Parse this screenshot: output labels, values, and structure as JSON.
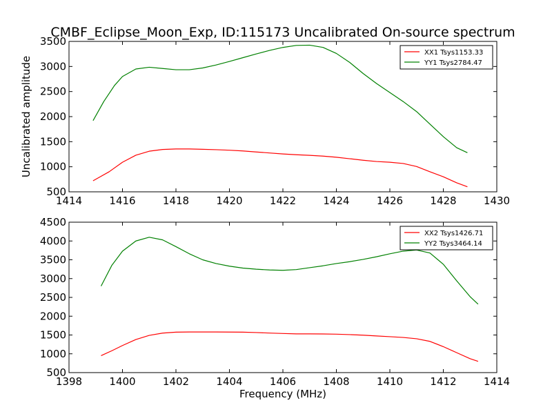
{
  "title": "CMBF_Eclipse_Moon_Exp, ID:115173 Uncalibrated On-source spectrum",
  "colors": {
    "xx": "#ff0000",
    "yy": "#008000"
  },
  "chart_data": [
    {
      "type": "line",
      "xlabel": "",
      "ylabel": "Uncalibrated amplitude",
      "xlim": [
        1414,
        1430
      ],
      "ylim": [
        500,
        3500
      ],
      "xticks": [
        1414,
        1416,
        1418,
        1420,
        1422,
        1424,
        1426,
        1428,
        1430
      ],
      "yticks": [
        500,
        1000,
        1500,
        2000,
        2500,
        3000,
        3500
      ],
      "grid": false,
      "legend_position": "top-right",
      "series": [
        {
          "name": "XX1 Tsys1153.33",
          "color": "#ff0000",
          "x": [
            1414.9,
            1415.5,
            1416.0,
            1416.5,
            1417.0,
            1417.5,
            1418.0,
            1418.5,
            1419.0,
            1419.5,
            1420.0,
            1420.5,
            1421.0,
            1421.5,
            1422.0,
            1422.5,
            1423.0,
            1423.5,
            1424.0,
            1424.5,
            1425.0,
            1425.5,
            1426.0,
            1426.5,
            1427.0,
            1427.5,
            1428.0,
            1428.5,
            1428.9
          ],
          "y": [
            720,
            900,
            1090,
            1230,
            1310,
            1345,
            1355,
            1355,
            1348,
            1340,
            1330,
            1315,
            1295,
            1275,
            1255,
            1240,
            1228,
            1212,
            1190,
            1160,
            1130,
            1105,
            1090,
            1065,
            1005,
            900,
            800,
            680,
            600
          ]
        },
        {
          "name": "YY1 Tsys2784.47",
          "color": "#008000",
          "x": [
            1414.9,
            1415.3,
            1415.7,
            1416.0,
            1416.5,
            1417.0,
            1417.5,
            1418.0,
            1418.5,
            1419.0,
            1419.5,
            1420.0,
            1420.5,
            1421.0,
            1421.5,
            1422.0,
            1422.5,
            1423.0,
            1423.5,
            1424.0,
            1424.5,
            1425.0,
            1425.5,
            1426.0,
            1426.5,
            1427.0,
            1427.5,
            1428.0,
            1428.5,
            1428.9
          ],
          "y": [
            1920,
            2300,
            2620,
            2800,
            2950,
            2985,
            2960,
            2935,
            2935,
            2970,
            3030,
            3100,
            3175,
            3250,
            3320,
            3380,
            3420,
            3425,
            3380,
            3260,
            3080,
            2860,
            2660,
            2480,
            2300,
            2100,
            1850,
            1600,
            1380,
            1280
          ]
        }
      ]
    },
    {
      "type": "line",
      "xlabel": "Frequency (MHz)",
      "ylabel": "",
      "xlim": [
        1398,
        1414
      ],
      "ylim": [
        500,
        4500
      ],
      "xticks": [
        1398,
        1400,
        1402,
        1404,
        1406,
        1408,
        1410,
        1412,
        1414
      ],
      "yticks": [
        500,
        1000,
        1500,
        2000,
        2500,
        3000,
        3500,
        4000,
        4500
      ],
      "grid": false,
      "legend_position": "top-right",
      "series": [
        {
          "name": "XX2 Tsys1426.71",
          "color": "#ff0000",
          "x": [
            1399.2,
            1399.6,
            1400.0,
            1400.5,
            1401.0,
            1401.5,
            1402.0,
            1402.5,
            1403.0,
            1403.5,
            1404.0,
            1404.5,
            1405.0,
            1405.5,
            1406.0,
            1406.5,
            1407.0,
            1407.5,
            1408.0,
            1408.5,
            1409.0,
            1409.5,
            1410.0,
            1410.5,
            1411.0,
            1411.5,
            1412.0,
            1412.5,
            1413.0,
            1413.3
          ],
          "y": [
            950,
            1080,
            1220,
            1380,
            1490,
            1550,
            1575,
            1580,
            1580,
            1580,
            1578,
            1575,
            1565,
            1552,
            1540,
            1530,
            1530,
            1528,
            1522,
            1510,
            1495,
            1475,
            1455,
            1435,
            1400,
            1330,
            1190,
            1030,
            870,
            800
          ]
        },
        {
          "name": "YY2 Tsys3464.14",
          "color": "#008000",
          "x": [
            1399.2,
            1399.6,
            1400.0,
            1400.5,
            1401.0,
            1401.5,
            1402.0,
            1402.5,
            1403.0,
            1403.5,
            1404.0,
            1404.5,
            1405.0,
            1405.5,
            1406.0,
            1406.5,
            1407.0,
            1407.5,
            1408.0,
            1408.5,
            1409.0,
            1409.5,
            1410.0,
            1410.5,
            1411.0,
            1411.5,
            1412.0,
            1412.5,
            1413.0,
            1413.3
          ],
          "y": [
            2800,
            3350,
            3730,
            4000,
            4100,
            4030,
            3850,
            3660,
            3500,
            3400,
            3330,
            3280,
            3250,
            3230,
            3220,
            3240,
            3290,
            3340,
            3400,
            3450,
            3510,
            3580,
            3660,
            3730,
            3760,
            3680,
            3380,
            2940,
            2520,
            2320
          ]
        }
      ]
    }
  ]
}
